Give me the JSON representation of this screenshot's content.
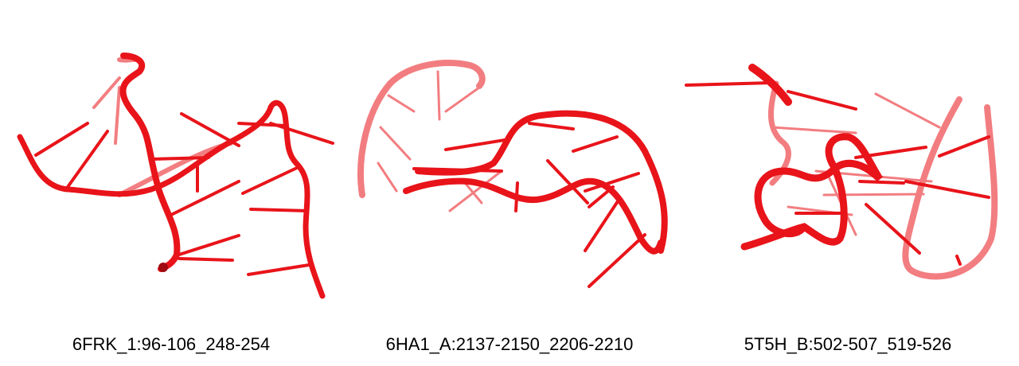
{
  "panels": [
    {
      "caption": "6FRK_1:96-106_248-254"
    },
    {
      "caption": "6HA1_A:2137-2150_2206-2210"
    },
    {
      "caption": "5T5H_B:502-507_519-526"
    }
  ],
  "colors": {
    "backbone": "#e8141a",
    "backbone_dark": "#a00a10",
    "rung": "#e8141a",
    "caption_text": "#000000",
    "background": "#ffffff"
  }
}
